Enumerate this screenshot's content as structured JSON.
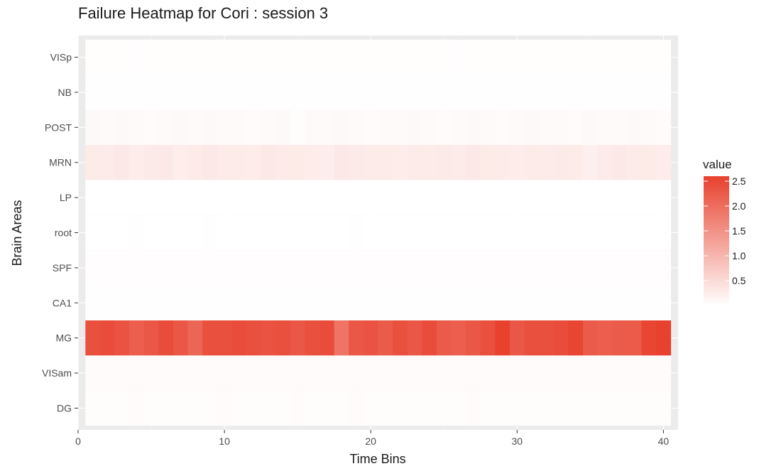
{
  "chart_data": {
    "type": "heatmap",
    "title": "Failure Heatmap for Cori : session 3",
    "xlabel": "Time Bins",
    "ylabel": "Brain Areas",
    "xlim": [
      0,
      41
    ],
    "x_ticks": [
      0,
      10,
      20,
      30,
      40
    ],
    "x_bins": [
      1,
      2,
      3,
      4,
      5,
      6,
      7,
      8,
      9,
      10,
      11,
      12,
      13,
      14,
      15,
      16,
      17,
      18,
      19,
      20,
      21,
      22,
      23,
      24,
      25,
      26,
      27,
      28,
      29,
      30,
      31,
      32,
      33,
      34,
      35,
      36,
      37,
      38,
      39,
      40
    ],
    "y_categories": [
      "VISp",
      "NB",
      "POST",
      "MRN",
      "LP",
      "root",
      "SPF",
      "CA1",
      "MG",
      "VISam",
      "DG"
    ],
    "series": [
      {
        "name": "VISp",
        "values": [
          0.02,
          0.02,
          0.02,
          0.03,
          0.02,
          0.02,
          0.02,
          0.02,
          0.03,
          0.02,
          0.02,
          0.02,
          0.02,
          0.02,
          0.02,
          0.02,
          0.02,
          0.02,
          0.02,
          0.02,
          0.02,
          0.02,
          0.02,
          0.02,
          0.02,
          0.03,
          0.02,
          0.02,
          0.02,
          0.02,
          0.02,
          0.02,
          0.02,
          0.02,
          0.02,
          0.02,
          0.02,
          0.02,
          0.02,
          0.02
        ]
      },
      {
        "name": "NB",
        "values": [
          0.01,
          0.01,
          0.01,
          0.01,
          0.01,
          0.01,
          0.01,
          0.01,
          0.01,
          0.01,
          0.01,
          0.01,
          0.01,
          0.01,
          0.01,
          0.01,
          0.01,
          0.01,
          0.01,
          0.01,
          0.01,
          0.01,
          0.01,
          0.01,
          0.01,
          0.01,
          0.01,
          0.01,
          0.01,
          0.01,
          0.01,
          0.01,
          0.01,
          0.01,
          0.01,
          0.01,
          0.01,
          0.01,
          0.01,
          0.01
        ]
      },
      {
        "name": "POST",
        "values": [
          0.08,
          0.07,
          0.08,
          0.07,
          0.06,
          0.07,
          0.08,
          0.07,
          0.08,
          0.07,
          0.07,
          0.06,
          0.07,
          0.08,
          0.04,
          0.08,
          0.07,
          0.08,
          0.07,
          0.06,
          0.07,
          0.07,
          0.08,
          0.07,
          0.06,
          0.07,
          0.08,
          0.07,
          0.06,
          0.07,
          0.08,
          0.07,
          0.07,
          0.06,
          0.08,
          0.07,
          0.07,
          0.08,
          0.07,
          0.06
        ]
      },
      {
        "name": "MRN",
        "values": [
          0.28,
          0.27,
          0.3,
          0.26,
          0.29,
          0.3,
          0.25,
          0.28,
          0.3,
          0.27,
          0.28,
          0.26,
          0.32,
          0.27,
          0.28,
          0.26,
          0.24,
          0.3,
          0.29,
          0.27,
          0.28,
          0.26,
          0.27,
          0.28,
          0.29,
          0.27,
          0.3,
          0.28,
          0.27,
          0.26,
          0.28,
          0.27,
          0.29,
          0.28,
          0.22,
          0.27,
          0.3,
          0.27,
          0.28,
          0.26
        ]
      },
      {
        "name": "LP",
        "values": [
          0.0,
          0.0,
          0.0,
          0.0,
          0.0,
          0.0,
          0.0,
          0.0,
          0.0,
          0.0,
          0.0,
          0.0,
          0.0,
          0.0,
          0.0,
          0.0,
          0.0,
          0.0,
          0.0,
          0.0,
          0.0,
          0.0,
          0.0,
          0.0,
          0.0,
          0.0,
          0.0,
          0.0,
          0.0,
          0.0,
          0.0,
          0.0,
          0.0,
          0.0,
          0.0,
          0.0,
          0.0,
          0.0,
          0.0,
          0.0
        ]
      },
      {
        "name": "root",
        "values": [
          0.0,
          0.0,
          0.0,
          0.01,
          0.0,
          0.0,
          0.0,
          0.0,
          0.01,
          0.0,
          0.0,
          0.0,
          0.0,
          0.0,
          0.0,
          0.0,
          0.0,
          0.0,
          0.01,
          0.0,
          0.0,
          0.0,
          0.0,
          0.0,
          0.0,
          0.0,
          0.0,
          0.0,
          0.0,
          0.0,
          0.0,
          0.0,
          0.0,
          0.0,
          0.0,
          0.0,
          0.0,
          0.0,
          0.0,
          0.0
        ]
      },
      {
        "name": "SPF",
        "values": [
          0.03,
          0.03,
          0.03,
          0.03,
          0.03,
          0.03,
          0.03,
          0.03,
          0.03,
          0.03,
          0.03,
          0.03,
          0.03,
          0.03,
          0.03,
          0.03,
          0.03,
          0.03,
          0.03,
          0.03,
          0.03,
          0.03,
          0.03,
          0.03,
          0.03,
          0.03,
          0.03,
          0.03,
          0.03,
          0.03,
          0.03,
          0.03,
          0.03,
          0.03,
          0.03,
          0.03,
          0.03,
          0.03,
          0.03,
          0.03
        ]
      },
      {
        "name": "CA1",
        "values": [
          0.01,
          0.01,
          0.01,
          0.01,
          0.01,
          0.01,
          0.01,
          0.01,
          0.01,
          0.01,
          0.01,
          0.01,
          0.01,
          0.01,
          0.01,
          0.01,
          0.01,
          0.01,
          0.01,
          0.01,
          0.01,
          0.01,
          0.01,
          0.01,
          0.01,
          0.01,
          0.01,
          0.01,
          0.01,
          0.01,
          0.01,
          0.01,
          0.01,
          0.01,
          0.01,
          0.01,
          0.01,
          0.01,
          0.01,
          0.01
        ]
      },
      {
        "name": "MG",
        "values": [
          2.4,
          2.45,
          2.35,
          2.2,
          2.3,
          2.45,
          2.3,
          2.1,
          2.4,
          2.4,
          2.45,
          2.4,
          2.35,
          2.4,
          2.3,
          2.4,
          2.45,
          1.9,
          2.3,
          2.35,
          2.25,
          2.4,
          2.3,
          2.45,
          2.25,
          2.2,
          2.3,
          2.4,
          2.6,
          2.3,
          2.4,
          2.4,
          2.45,
          2.55,
          2.25,
          2.2,
          2.25,
          2.25,
          2.55,
          2.6
        ]
      },
      {
        "name": "VISam",
        "values": [
          0.05,
          0.05,
          0.05,
          0.06,
          0.05,
          0.05,
          0.05,
          0.06,
          0.05,
          0.05,
          0.05,
          0.05,
          0.06,
          0.05,
          0.05,
          0.05,
          0.05,
          0.05,
          0.05,
          0.06,
          0.05,
          0.05,
          0.05,
          0.05,
          0.05,
          0.05,
          0.06,
          0.05,
          0.05,
          0.05,
          0.05,
          0.05,
          0.05,
          0.05,
          0.06,
          0.05,
          0.05,
          0.05,
          0.05,
          0.05
        ]
      },
      {
        "name": "DG",
        "values": [
          0.04,
          0.04,
          0.04,
          0.05,
          0.04,
          0.04,
          0.04,
          0.04,
          0.04,
          0.05,
          0.04,
          0.04,
          0.04,
          0.04,
          0.05,
          0.04,
          0.04,
          0.04,
          0.05,
          0.04,
          0.04,
          0.04,
          0.04,
          0.04,
          0.04,
          0.04,
          0.05,
          0.04,
          0.04,
          0.04,
          0.04,
          0.04,
          0.04,
          0.04,
          0.04,
          0.04,
          0.04,
          0.04,
          0.04,
          0.04
        ]
      }
    ],
    "legend": {
      "title": "value",
      "position": "right",
      "range": [
        0,
        2.6
      ],
      "ticks": [
        0.5,
        1.0,
        1.5,
        2.0,
        2.5
      ],
      "tick_labels": [
        "0.5",
        "1.0",
        "1.5",
        "2.0",
        "2.5"
      ],
      "color_low": "#ffffff",
      "color_high": "#e8412e"
    },
    "grid": true,
    "panel_background": "#ebebeb"
  }
}
